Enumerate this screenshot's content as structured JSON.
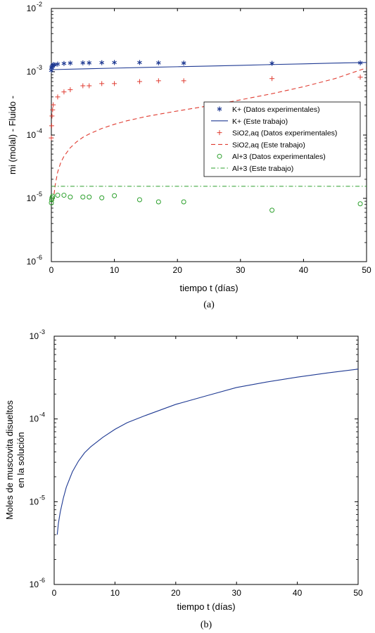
{
  "chart_data": [
    {
      "type": "scatter",
      "panel_caption": "(a)",
      "xlabel": "tiempo t (días)",
      "ylabel": "mi (molal) - Fluido -",
      "xlim": [
        0,
        50
      ],
      "ylim_exponents": [
        -6,
        -2
      ],
      "y_scale": "log",
      "xticks": [
        "0",
        "10",
        "20",
        "30",
        "40",
        "50"
      ],
      "ytick_base": "10",
      "ytick_exponents": [
        "-6",
        "-5",
        "-4",
        "-3",
        "-2"
      ],
      "legend_position": "center-right",
      "series": [
        {
          "name": "K+ (Datos experimentales)",
          "kind": "marker",
          "marker": "asterisk",
          "color": "#1f3a93",
          "x": [
            0,
            0.05,
            0.1,
            0.2,
            0.3,
            0.5,
            1,
            2,
            3,
            5,
            6,
            8,
            10,
            14,
            17,
            21,
            35,
            49
          ],
          "y": [
            0.00105,
            0.00115,
            0.0012,
            0.00125,
            0.0013,
            0.00128,
            0.00132,
            0.00135,
            0.00137,
            0.00138,
            0.00138,
            0.00139,
            0.0014,
            0.0014,
            0.00138,
            0.00137,
            0.00136,
            0.00138
          ]
        },
        {
          "name": "K+ (Este trabajo)",
          "kind": "line",
          "style": "solid",
          "color": "#1f3a93",
          "x": [
            0,
            5,
            10,
            15,
            20,
            25,
            30,
            35,
            40,
            45,
            50
          ],
          "y": [
            0.00108,
            0.00111,
            0.00114,
            0.00117,
            0.0012,
            0.00123,
            0.00126,
            0.0013,
            0.00133,
            0.00137,
            0.0014
          ]
        },
        {
          "name": "SiO2,aq  (Datos experimentales)",
          "kind": "marker",
          "marker": "plus",
          "color": "#e03c31",
          "x": [
            0,
            0.05,
            0.1,
            0.2,
            0.3,
            1,
            2,
            3,
            5,
            6,
            8,
            10,
            14,
            17,
            21,
            35,
            49
          ],
          "y": [
            9e-05,
            0.00014,
            0.0002,
            0.00025,
            0.0003,
            0.0004,
            0.00048,
            0.00052,
            0.0006,
            0.0006,
            0.00065,
            0.00065,
            0.0007,
            0.00072,
            0.00072,
            0.00078,
            0.00082
          ]
        },
        {
          "name": "SiO2,aq (Este trabajo)",
          "kind": "line",
          "style": "dashed",
          "color": "#e03c31",
          "x": [
            0.3,
            0.6,
            1,
            1.5,
            2,
            3,
            4,
            5,
            6,
            8,
            10,
            12,
            15,
            20,
            25,
            30,
            35,
            40,
            45,
            50
          ],
          "y": [
            9e-06,
            1.6e-05,
            2.6e-05,
            3.7e-05,
            4.6e-05,
            6.3e-05,
            7.8e-05,
            9.2e-05,
            0.000104,
            0.000127,
            0.000148,
            0.000168,
            0.000196,
            0.00024,
            0.00029,
            0.00036,
            0.00045,
            0.00058,
            0.00078,
            0.00115
          ]
        },
        {
          "name": "Al+3 (Datos experimentales)",
          "kind": "marker",
          "marker": "circle",
          "color": "#2ca02c",
          "x": [
            0,
            0.05,
            0.1,
            0.2,
            1,
            2,
            3,
            5,
            6,
            8,
            10,
            14,
            17,
            21,
            35,
            49
          ],
          "y": [
            8.5e-06,
            9.5e-06,
            1.02e-05,
            1.08e-05,
            1.12e-05,
            1.12e-05,
            1.05e-05,
            1.05e-05,
            1.05e-05,
            1.02e-05,
            1.1e-05,
            9.5e-06,
            8.8e-06,
            8.8e-06,
            6.5e-06,
            8.2e-06
          ]
        },
        {
          "name": "Al+3 (Este trabajo)",
          "kind": "line",
          "style": "dashdot",
          "color": "#2ca02c",
          "x": [
            0,
            50
          ],
          "y": [
            1.55e-05,
            1.55e-05
          ]
        }
      ]
    },
    {
      "type": "line",
      "panel_caption": "(b)",
      "xlabel": "tiempo t (días)",
      "ylabel_lines": [
        "Moles de muscovita disueltos",
        "en la solución"
      ],
      "xlim": [
        0,
        50
      ],
      "ylim_exponents": [
        -6,
        -3
      ],
      "y_scale": "log",
      "xticks": [
        "0",
        "10",
        "20",
        "30",
        "40",
        "50"
      ],
      "ytick_base": "10",
      "ytick_exponents": [
        "-6",
        "-5",
        "-4",
        "-3"
      ],
      "series": [
        {
          "kind": "line",
          "style": "solid",
          "color": "#1f3a93",
          "x": [
            0.5,
            0.7,
            1,
            1.5,
            2,
            3,
            4,
            5,
            6,
            8,
            10,
            12,
            15,
            20,
            25,
            30,
            35,
            40,
            45,
            50
          ],
          "y": [
            4e-06,
            5.5e-06,
            7.5e-06,
            1.1e-05,
            1.5e-05,
            2.3e-05,
            3.1e-05,
            3.9e-05,
            4.6e-05,
            6e-05,
            7.5e-05,
            9e-05,
            0.00011,
            0.00015,
            0.00019,
            0.00024,
            0.00028,
            0.00032,
            0.00036,
            0.0004
          ]
        }
      ]
    }
  ]
}
